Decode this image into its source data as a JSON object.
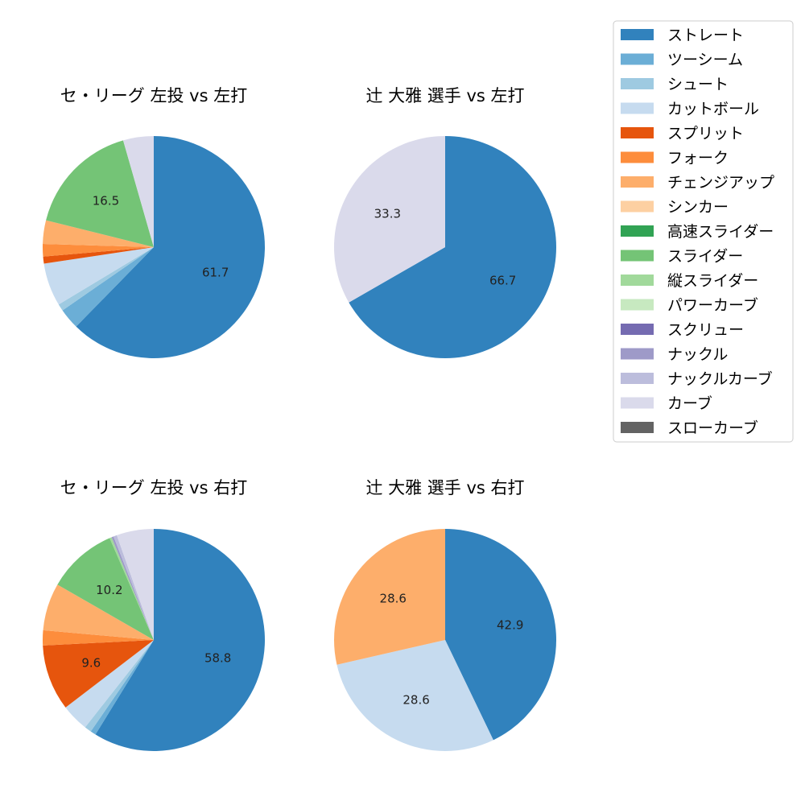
{
  "chart_data": [
    {
      "type": "pie",
      "title": "セ・リーグ 左投 vs 左打",
      "slices": [
        {
          "name": "ストレート",
          "value": 61.7,
          "color": "#3182bd",
          "label": "61.7"
        },
        {
          "name": "ツーシーム",
          "value": 3.0,
          "color": "#6baed6",
          "label": ""
        },
        {
          "name": "シュート",
          "value": 1.0,
          "color": "#9ecae1",
          "label": ""
        },
        {
          "name": "カットボール",
          "value": 6.2,
          "color": "#c6dbef",
          "label": ""
        },
        {
          "name": "スプリット",
          "value": 1.0,
          "color": "#e6550d",
          "label": ""
        },
        {
          "name": "フォーク",
          "value": 1.8,
          "color": "#fd8d3c",
          "label": ""
        },
        {
          "name": "チェンジアップ",
          "value": 3.4,
          "color": "#fdae6b",
          "label": ""
        },
        {
          "name": "スライダー",
          "value": 16.5,
          "color": "#74c476",
          "label": "16.5"
        },
        {
          "name": "カーブ",
          "value": 4.4,
          "color": "#dadaeb",
          "label": ""
        }
      ]
    },
    {
      "type": "pie",
      "title": "辻 大雅 選手 vs 左打",
      "slices": [
        {
          "name": "ストレート",
          "value": 66.7,
          "color": "#3182bd",
          "label": "66.7"
        },
        {
          "name": "カーブ",
          "value": 33.3,
          "color": "#dadaeb",
          "label": "33.3"
        }
      ]
    },
    {
      "type": "pie",
      "title": "セ・リーグ 左投 vs 右打",
      "slices": [
        {
          "name": "ストレート",
          "value": 58.8,
          "color": "#3182bd",
          "label": "58.8"
        },
        {
          "name": "ツーシーム",
          "value": 0.8,
          "color": "#6baed6",
          "label": ""
        },
        {
          "name": "シュート",
          "value": 1.0,
          "color": "#9ecae1",
          "label": ""
        },
        {
          "name": "カットボール",
          "value": 4.0,
          "color": "#c6dbef",
          "label": ""
        },
        {
          "name": "スプリット",
          "value": 9.6,
          "color": "#e6550d",
          "label": "9.6"
        },
        {
          "name": "フォーク",
          "value": 2.2,
          "color": "#fd8d3c",
          "label": ""
        },
        {
          "name": "チェンジアップ",
          "value": 6.9,
          "color": "#fdae6b",
          "label": ""
        },
        {
          "name": "スライダー",
          "value": 10.2,
          "color": "#74c476",
          "label": "10.2"
        },
        {
          "name": "縦スライダー",
          "value": 0.3,
          "color": "#a1d99b",
          "label": ""
        },
        {
          "name": "ナックル",
          "value": 0.3,
          "color": "#9e9ac8",
          "label": ""
        },
        {
          "name": "ナックルカーブ",
          "value": 0.5,
          "color": "#bcbddc",
          "label": ""
        },
        {
          "name": "カーブ",
          "value": 5.4,
          "color": "#dadaeb",
          "label": ""
        }
      ]
    },
    {
      "type": "pie",
      "title": "辻 大雅 選手 vs 右打",
      "slices": [
        {
          "name": "ストレート",
          "value": 42.9,
          "color": "#3182bd",
          "label": "42.9"
        },
        {
          "name": "カットボール",
          "value": 28.6,
          "color": "#c6dbef",
          "label": "28.6"
        },
        {
          "name": "チェンジアップ",
          "value": 28.6,
          "color": "#fdae6b",
          "label": "28.6"
        }
      ]
    }
  ],
  "legend": {
    "position": "top-right",
    "items": [
      {
        "label": "ストレート",
        "color": "#3182bd"
      },
      {
        "label": "ツーシーム",
        "color": "#6baed6"
      },
      {
        "label": "シュート",
        "color": "#9ecae1"
      },
      {
        "label": "カットボール",
        "color": "#c6dbef"
      },
      {
        "label": "スプリット",
        "color": "#e6550d"
      },
      {
        "label": "フォーク",
        "color": "#fd8d3c"
      },
      {
        "label": "チェンジアップ",
        "color": "#fdae6b"
      },
      {
        "label": "シンカー",
        "color": "#fdd0a2"
      },
      {
        "label": "高速スライダー",
        "color": "#31a354"
      },
      {
        "label": "スライダー",
        "color": "#74c476"
      },
      {
        "label": "縦スライダー",
        "color": "#a1d99b"
      },
      {
        "label": "パワーカーブ",
        "color": "#c7e9c0"
      },
      {
        "label": "スクリュー",
        "color": "#756bb1"
      },
      {
        "label": "ナックル",
        "color": "#9e9ac8"
      },
      {
        "label": "ナックルカーブ",
        "color": "#bcbddc"
      },
      {
        "label": "カーブ",
        "color": "#dadaeb"
      },
      {
        "label": "スローカーブ",
        "color": "#636363"
      }
    ]
  }
}
